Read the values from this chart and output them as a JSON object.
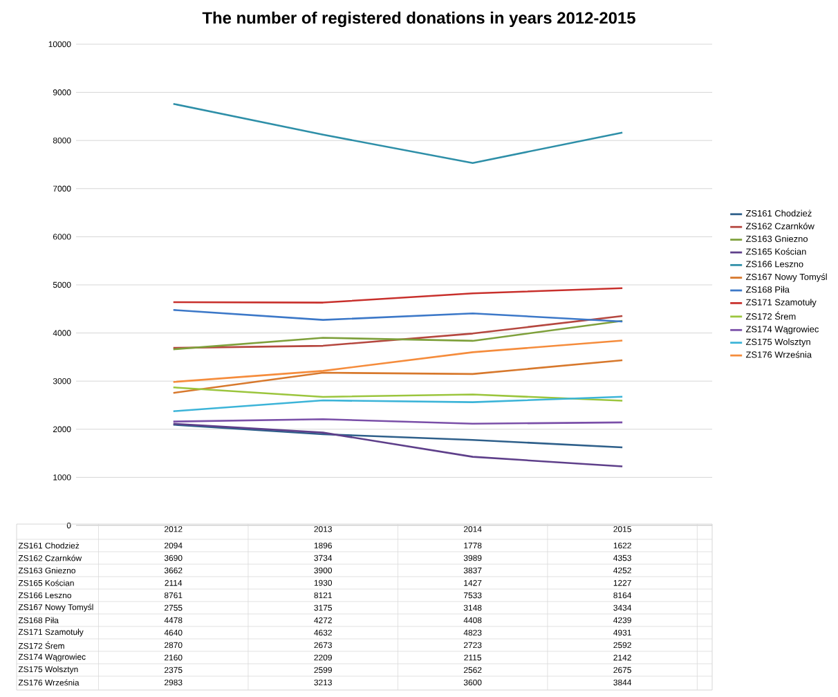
{
  "chart_data": {
    "type": "line",
    "title": "The number of registered donations in years 2012-2015",
    "categories": [
      "2012",
      "2013",
      "2014",
      "2015"
    ],
    "series": [
      {
        "name": "ZS161 Chodzież",
        "color": "#2e5f8a",
        "values": [
          2094,
          1896,
          1778,
          1622
        ]
      },
      {
        "name": "ZS162 Czarnków",
        "color": "#b5473f",
        "values": [
          3690,
          3734,
          3989,
          4353
        ]
      },
      {
        "name": "ZS163 Gniezno",
        "color": "#7ea03b",
        "values": [
          3662,
          3900,
          3837,
          4252
        ]
      },
      {
        "name": "ZS165 Kościan",
        "color": "#5e3f8a",
        "values": [
          2114,
          1930,
          1427,
          1227
        ]
      },
      {
        "name": "ZS166 Leszno",
        "color": "#2e8fa8",
        "values": [
          8761,
          8121,
          7533,
          8164
        ]
      },
      {
        "name": "ZS167 Nowy Tomyśl",
        "color": "#d7782c",
        "values": [
          2755,
          3175,
          3148,
          3434
        ]
      },
      {
        "name": "ZS168 Piła",
        "color": "#3c78c8",
        "values": [
          4478,
          4272,
          4408,
          4239
        ]
      },
      {
        "name": "ZS171 Szamotuły",
        "color": "#c8302c",
        "values": [
          4640,
          4632,
          4823,
          4931
        ]
      },
      {
        "name": "ZS172 Śrem",
        "color": "#9bc53d",
        "values": [
          2870,
          2673,
          2723,
          2592
        ]
      },
      {
        "name": "ZS174 Wągrowiec",
        "color": "#7a4fa8",
        "values": [
          2160,
          2209,
          2115,
          2142
        ]
      },
      {
        "name": "ZS175 Wolsztyn",
        "color": "#3cb4d8",
        "values": [
          2375,
          2599,
          2562,
          2675
        ]
      },
      {
        "name": "ZS176 Września",
        "color": "#f58c3c",
        "values": [
          2983,
          3213,
          3600,
          3844
        ]
      }
    ],
    "ylim": [
      0,
      10000
    ],
    "yticks": [
      0,
      1000,
      2000,
      3000,
      4000,
      5000,
      6000,
      7000,
      8000,
      9000,
      10000
    ],
    "grid": "y",
    "legend": "right",
    "marker": "none",
    "line_style": "solid",
    "data_labels": true
  }
}
